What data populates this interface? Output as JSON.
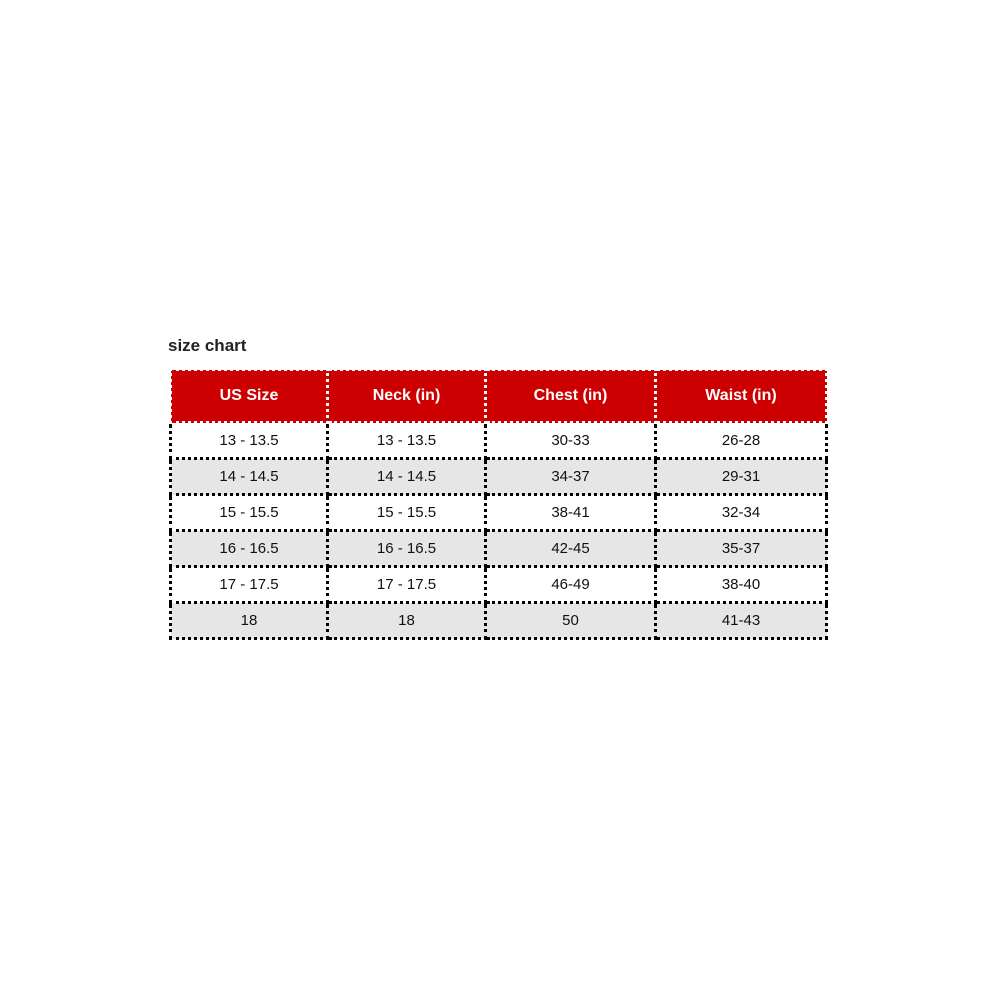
{
  "title": "size chart",
  "colors": {
    "header_bg": "#cc0000",
    "header_text": "#ffffff",
    "alt_row": "#e6e6e6"
  },
  "headers": [
    "US Size",
    "Neck (in)",
    "Chest (in)",
    "Waist (in)"
  ],
  "rows": [
    [
      "13 - 13.5",
      "13 - 13.5",
      "30-33",
      "26-28"
    ],
    [
      "14 - 14.5",
      "14 - 14.5",
      "34-37",
      "29-31"
    ],
    [
      "15 - 15.5",
      "15 - 15.5",
      "38-41",
      "32-34"
    ],
    [
      "16 - 16.5",
      "16 - 16.5",
      "42-45",
      "35-37"
    ],
    [
      "17 - 17.5",
      "17 - 17.5",
      "46-49",
      "38-40"
    ],
    [
      "18",
      "18",
      "50",
      "41-43"
    ]
  ]
}
